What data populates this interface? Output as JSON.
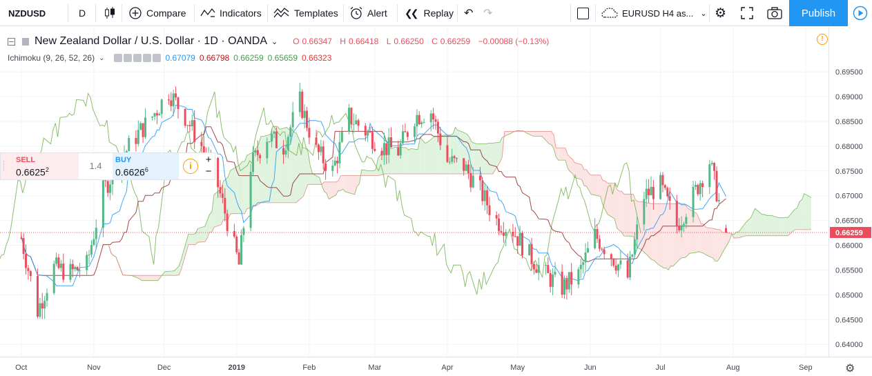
{
  "toolbar": {
    "symbol": "NZDUSD",
    "interval": "D",
    "compare": "Compare",
    "indicators": "Indicators",
    "templates": "Templates",
    "alert": "Alert",
    "replay": "Replay",
    "layout_name": "EURUSD H4 as...",
    "publish": "Publish"
  },
  "legend": {
    "title": "New Zealand Dollar / U.S. Dollar · 1D · OANDA",
    "open_label": "O",
    "open": "0.66347",
    "high_label": "H",
    "high": "0.66418",
    "low_label": "L",
    "low": "0.66250",
    "close_label": "C",
    "close": "0.66259",
    "change": "−0.00088 (−0.13%)",
    "indicator": "Ichimoku (9, 26, 52, 26)",
    "ind_values": [
      "0.67079",
      "0.66798",
      "0.66259",
      "0.65659",
      "0.66323"
    ]
  },
  "trade": {
    "sell_label": "SELL",
    "sell_price": "0.6625",
    "sell_sup": "2",
    "spread": "1.4",
    "buy_label": "BUY",
    "buy_price": "0.6626",
    "buy_sup": "6"
  },
  "colors": {
    "up": "#53b987",
    "down": "#eb4d5c",
    "tenkan": "#2196f3",
    "kijun": "#8b1a1a",
    "chikou": "#66a83b",
    "span_a": "#66a83b",
    "span_b": "#e57373",
    "cloud_bull": "#dff3df",
    "cloud_bear": "#fde4e4",
    "accent": "#2196f3"
  },
  "chart_data": {
    "type": "candlestick",
    "y_axis": {
      "range": [
        0.6385,
        0.6985
      ],
      "ticks": [
        "0.69500",
        "0.69000",
        "0.68500",
        "0.68000",
        "0.67500",
        "0.67000",
        "0.66500",
        "0.66000",
        "0.65500",
        "0.65000",
        "0.64500",
        "0.64000"
      ]
    },
    "x_axis": {
      "labels": [
        "Oct",
        "Nov",
        "Dec",
        "2019",
        "Feb",
        "Mar",
        "Apr",
        "May",
        "Jun",
        "Jul",
        "Aug",
        "Sep"
      ]
    },
    "last_price": "0.66259",
    "anchors": [
      [
        "2018-10-01",
        0.6615
      ],
      [
        "2018-10-08",
        0.6468
      ],
      [
        "2018-10-15",
        0.6555
      ],
      [
        "2018-10-22",
        0.6545
      ],
      [
        "2018-10-29",
        0.656
      ],
      [
        "2018-11-05",
        0.671
      ],
      [
        "2018-11-12",
        0.677
      ],
      [
        "2018-11-19",
        0.682
      ],
      [
        "2018-11-26",
        0.686
      ],
      [
        "2018-12-03",
        0.691
      ],
      [
        "2018-12-10",
        0.686
      ],
      [
        "2018-12-17",
        0.68
      ],
      [
        "2018-12-24",
        0.672
      ],
      [
        "2019-01-02",
        0.656
      ],
      [
        "2019-01-07",
        0.676
      ],
      [
        "2019-01-14",
        0.682
      ],
      [
        "2019-01-21",
        0.68
      ],
      [
        "2019-01-28",
        0.689
      ],
      [
        "2019-02-04",
        0.679
      ],
      [
        "2019-02-11",
        0.675
      ],
      [
        "2019-02-18",
        0.686
      ],
      [
        "2019-02-25",
        0.683
      ],
      [
        "2019-03-04",
        0.68
      ],
      [
        "2019-03-11",
        0.679
      ],
      [
        "2019-03-18",
        0.686
      ],
      [
        "2019-03-25",
        0.687
      ],
      [
        "2019-04-01",
        0.677
      ],
      [
        "2019-04-08",
        0.676
      ],
      [
        "2019-04-15",
        0.671
      ],
      [
        "2019-04-22",
        0.665
      ],
      [
        "2019-04-29",
        0.663
      ],
      [
        "2019-05-06",
        0.658
      ],
      [
        "2019-05-13",
        0.654
      ],
      [
        "2019-05-20",
        0.6515
      ],
      [
        "2019-05-27",
        0.654
      ],
      [
        "2019-06-03",
        0.662
      ],
      [
        "2019-06-10",
        0.658
      ],
      [
        "2019-06-17",
        0.6535
      ],
      [
        "2019-06-24",
        0.67
      ],
      [
        "2019-07-01",
        0.672
      ],
      [
        "2019-07-08",
        0.664
      ],
      [
        "2019-07-15",
        0.67
      ],
      [
        "2019-07-22",
        0.677
      ],
      [
        "2019-07-29",
        0.6626
      ]
    ]
  }
}
